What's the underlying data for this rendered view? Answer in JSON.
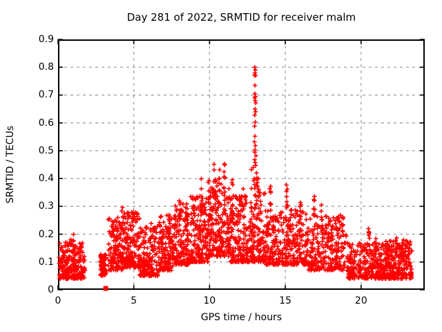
{
  "chart_data": {
    "type": "scatter",
    "title": "Day 281 of 2022, SRMTID for receiver malm",
    "xlabel": "GPS time / hours",
    "ylabel": "SRMTID / TECUs",
    "x_range": [
      0,
      24.2
    ],
    "y_range": [
      0,
      0.9
    ],
    "x_ticks": {
      "values": [
        0,
        5,
        10,
        15,
        20
      ],
      "labels": [
        "0",
        "5",
        "10",
        "15",
        "20"
      ]
    },
    "y_ticks": {
      "values": [
        0,
        0.1,
        0.2,
        0.3,
        0.4,
        0.5,
        0.6,
        0.7,
        0.8,
        0.9
      ],
      "labels": [
        "0",
        "0.1",
        "0.2",
        "0.3",
        "0.4",
        "0.5",
        "0.6",
        "0.7",
        "0.8",
        "0.9"
      ]
    },
    "grid": {
      "style": "dashed",
      "color": "#a0a0a0"
    },
    "marker": {
      "shape": "plus",
      "color": "#ff0000",
      "half_arm": 3.2,
      "stroke_width": 1.6
    },
    "border_color": "#000000",
    "legend": "none",
    "density_bands": [
      {
        "t0": 0.05,
        "t1": 1.8,
        "n": 240,
        "lo": 0.04,
        "hi": 0.17,
        "pw": 1.5
      },
      {
        "t0": 2.8,
        "t1": 3.15,
        "n": 80,
        "lo": 0.05,
        "hi": 0.13,
        "pw": 1.0
      },
      {
        "t0": 3.3,
        "t1": 4.35,
        "n": 140,
        "lo": 0.07,
        "hi": 0.26,
        "pw": 1.6
      },
      {
        "t0": 4.35,
        "t1": 5.4,
        "n": 140,
        "lo": 0.08,
        "hi": 0.28,
        "pw": 1.7
      },
      {
        "t0": 5.4,
        "t1": 6.6,
        "n": 160,
        "lo": 0.05,
        "hi": 0.23,
        "pw": 1.5
      },
      {
        "t0": 6.6,
        "t1": 7.6,
        "n": 150,
        "lo": 0.07,
        "hi": 0.27,
        "pw": 1.6
      },
      {
        "t0": 7.6,
        "t1": 8.7,
        "n": 160,
        "lo": 0.09,
        "hi": 0.31,
        "pw": 1.6
      },
      {
        "t0": 8.7,
        "t1": 9.9,
        "n": 170,
        "lo": 0.1,
        "hi": 0.34,
        "pw": 1.6
      },
      {
        "t0": 9.9,
        "t1": 11.3,
        "n": 190,
        "lo": 0.12,
        "hi": 0.38,
        "pw": 1.7
      },
      {
        "t0": 11.3,
        "t1": 12.6,
        "n": 180,
        "lo": 0.1,
        "hi": 0.34,
        "pw": 1.7
      },
      {
        "t0": 12.6,
        "t1": 13.7,
        "n": 160,
        "lo": 0.1,
        "hi": 0.4,
        "pw": 1.8
      },
      {
        "t0": 13.7,
        "t1": 16.4,
        "n": 300,
        "lo": 0.09,
        "hi": 0.29,
        "pw": 1.6
      },
      {
        "t0": 16.4,
        "t1": 19.1,
        "n": 280,
        "lo": 0.07,
        "hi": 0.27,
        "pw": 1.6
      },
      {
        "t0": 19.1,
        "t1": 21.6,
        "n": 280,
        "lo": 0.04,
        "hi": 0.17,
        "pw": 1.4
      },
      {
        "t0": 21.6,
        "t1": 23.35,
        "n": 240,
        "lo": 0.04,
        "hi": 0.18,
        "pw": 1.5
      }
    ],
    "spikes": [
      {
        "t": 0.95,
        "w": 0.3,
        "n": 10,
        "lo": 0.14,
        "hi": 0.21
      },
      {
        "t": 3.9,
        "w": 0.15,
        "n": 6,
        "lo": 0.18,
        "hi": 0.25
      },
      {
        "t": 4.25,
        "w": 0.12,
        "n": 8,
        "lo": 0.2,
        "hi": 0.3
      },
      {
        "t": 4.95,
        "w": 0.1,
        "n": 7,
        "lo": 0.2,
        "hi": 0.295
      },
      {
        "t": 6.1,
        "w": 0.1,
        "n": 5,
        "lo": 0.18,
        "hi": 0.25
      },
      {
        "t": 7.3,
        "w": 0.1,
        "n": 6,
        "lo": 0.2,
        "hi": 0.27
      },
      {
        "t": 8.05,
        "w": 0.1,
        "n": 7,
        "lo": 0.24,
        "hi": 0.32
      },
      {
        "t": 8.55,
        "w": 0.1,
        "n": 6,
        "lo": 0.24,
        "hi": 0.31
      },
      {
        "t": 8.95,
        "w": 0.12,
        "n": 8,
        "lo": 0.26,
        "hi": 0.36
      },
      {
        "t": 9.5,
        "w": 0.1,
        "n": 9,
        "lo": 0.28,
        "hi": 0.42
      },
      {
        "t": 9.95,
        "w": 0.1,
        "n": 6,
        "lo": 0.3,
        "hi": 0.4
      },
      {
        "t": 10.35,
        "w": 0.15,
        "n": 12,
        "lo": 0.3,
        "hi": 0.465
      },
      {
        "t": 10.65,
        "w": 0.1,
        "n": 7,
        "lo": 0.3,
        "hi": 0.44
      },
      {
        "t": 11.0,
        "w": 0.1,
        "n": 9,
        "lo": 0.3,
        "hi": 0.46
      },
      {
        "t": 11.5,
        "w": 0.12,
        "n": 7,
        "lo": 0.27,
        "hi": 0.4
      },
      {
        "t": 12.2,
        "w": 0.1,
        "n": 6,
        "lo": 0.27,
        "hi": 0.37
      },
      {
        "t": 14.0,
        "w": 0.08,
        "n": 7,
        "lo": 0.3,
        "hi": 0.385
      },
      {
        "t": 15.1,
        "w": 0.1,
        "n": 8,
        "lo": 0.29,
        "hi": 0.395
      },
      {
        "t": 16.0,
        "w": 0.1,
        "n": 5,
        "lo": 0.25,
        "hi": 0.33
      },
      {
        "t": 16.9,
        "w": 0.1,
        "n": 7,
        "lo": 0.26,
        "hi": 0.35
      },
      {
        "t": 17.4,
        "w": 0.08,
        "n": 5,
        "lo": 0.24,
        "hi": 0.33
      },
      {
        "t": 18.8,
        "w": 0.08,
        "n": 5,
        "lo": 0.19,
        "hi": 0.28
      },
      {
        "t": 20.5,
        "w": 0.12,
        "n": 6,
        "lo": 0.14,
        "hi": 0.23
      },
      {
        "t": 21.0,
        "w": 0.1,
        "n": 4,
        "lo": 0.13,
        "hi": 0.2
      },
      {
        "t": 22.3,
        "w": 0.1,
        "n": 5,
        "lo": 0.12,
        "hi": 0.19
      }
    ],
    "outlier_points": [
      [
        12.98,
        0.8
      ],
      [
        13.02,
        0.79
      ],
      [
        13.0,
        0.78
      ],
      [
        12.96,
        0.772
      ],
      [
        13.04,
        0.77
      ],
      [
        13.0,
        0.735
      ],
      [
        12.99,
        0.705
      ],
      [
        13.03,
        0.695
      ],
      [
        12.97,
        0.69
      ],
      [
        13.01,
        0.68
      ],
      [
        13.05,
        0.672
      ],
      [
        13.0,
        0.65
      ],
      [
        13.04,
        0.64
      ],
      [
        12.98,
        0.628
      ],
      [
        13.01,
        0.603
      ],
      [
        12.97,
        0.588
      ],
      [
        13.0,
        0.552
      ],
      [
        12.96,
        0.532
      ],
      [
        13.02,
        0.518
      ],
      [
        13.0,
        0.503
      ],
      [
        12.98,
        0.495
      ],
      [
        13.06,
        0.482
      ],
      [
        12.97,
        0.468
      ],
      [
        13.01,
        0.458
      ],
      [
        13.05,
        0.447
      ],
      [
        12.88,
        0.44
      ],
      [
        12.76,
        0.432
      ],
      [
        13.1,
        0.42
      ],
      [
        13.12,
        0.402
      ],
      [
        12.91,
        0.392
      ],
      [
        13.16,
        0.372
      ],
      [
        13.2,
        0.352
      ]
    ],
    "special_point": {
      "t": 3.15,
      "v": 0.005,
      "shape": "square",
      "size": 7
    }
  }
}
